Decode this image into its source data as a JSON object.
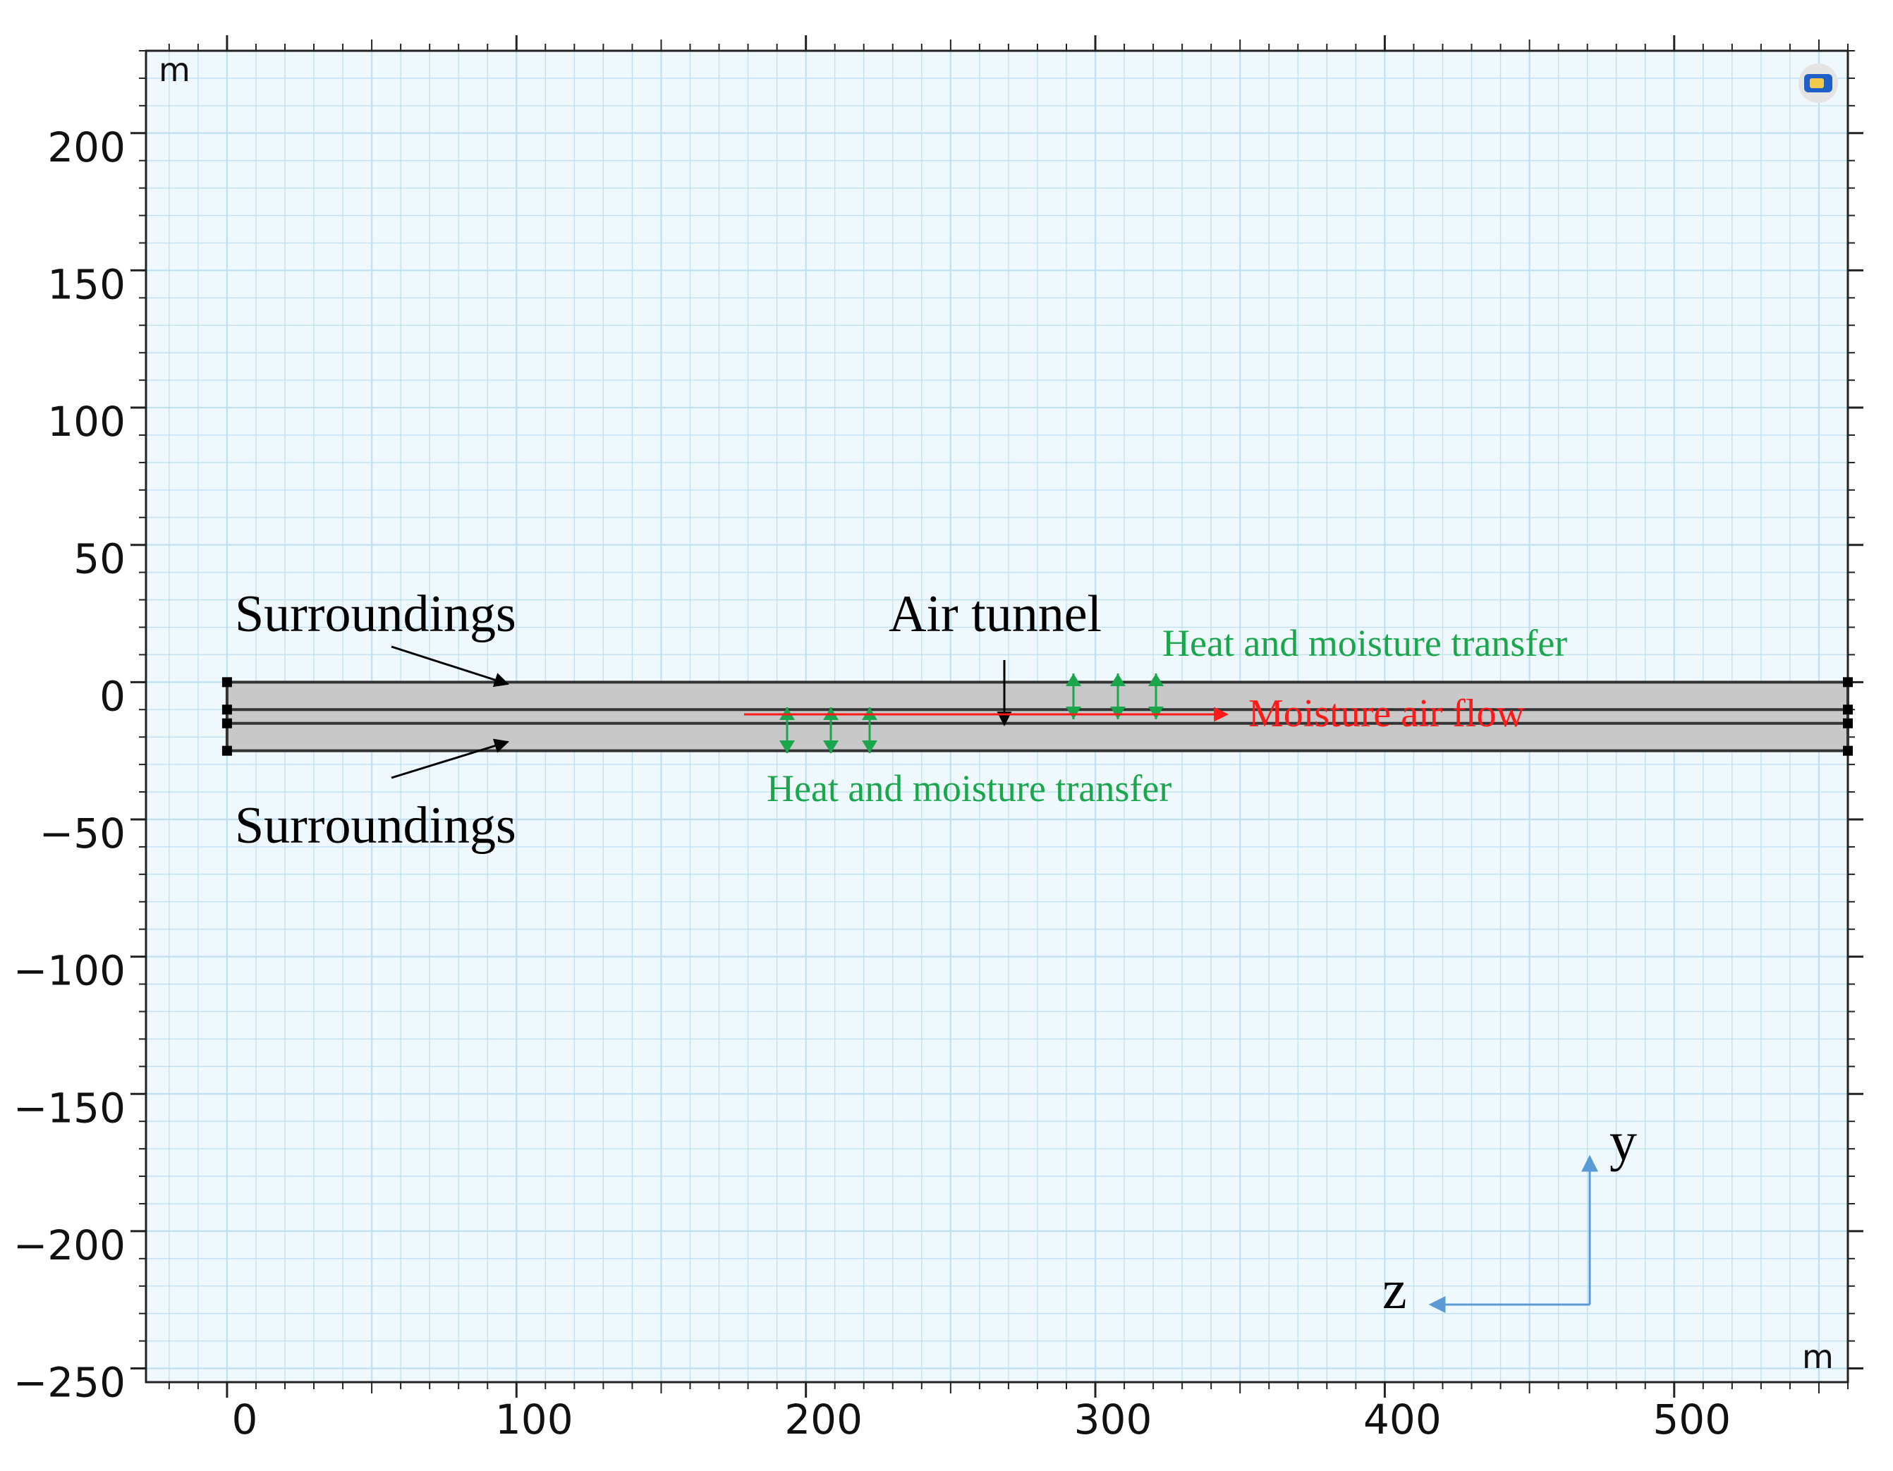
{
  "plot": {
    "x_unit": "m",
    "y_unit": "m",
    "xlim": [
      -28,
      560
    ],
    "ylim": [
      -255,
      230
    ],
    "x_ticks": [
      0,
      100,
      200,
      300,
      400,
      500
    ],
    "x_tick_labels": [
      "0",
      "100",
      "200",
      "300",
      "400",
      "500"
    ],
    "y_ticks": [
      200,
      150,
      100,
      50,
      0,
      -50,
      -100,
      -150,
      -200,
      -250
    ],
    "y_tick_labels": [
      "200",
      "150",
      "100",
      "50",
      "0",
      "−50",
      "−100",
      "−150",
      "−200",
      "−250"
    ],
    "grid": true,
    "grid_color": "#bfe0f2",
    "background": "#eef8fd",
    "frame_icon": "view-cube-icon"
  },
  "geometry": {
    "x_range": [
      0,
      560
    ],
    "layers_y": [
      0,
      -10,
      -15,
      -25
    ],
    "fill_color": "#c8c8c8",
    "line_color": "#333333"
  },
  "annotations": {
    "surroundings_top": "Surroundings",
    "surroundings_bottom": "Surroundings",
    "air_tunnel": "Air tunnel",
    "heat_transfer_top": "Heat and moisture transfer",
    "heat_transfer_bottom": "Heat and moisture transfer",
    "moisture_flow": "Moisture air flow",
    "green_color": "#1aa64a",
    "red_color": "#ff1a1a"
  },
  "axes_indicator": {
    "vertical_label": "y",
    "horizontal_label": "z",
    "color": "#5b9bd5"
  }
}
